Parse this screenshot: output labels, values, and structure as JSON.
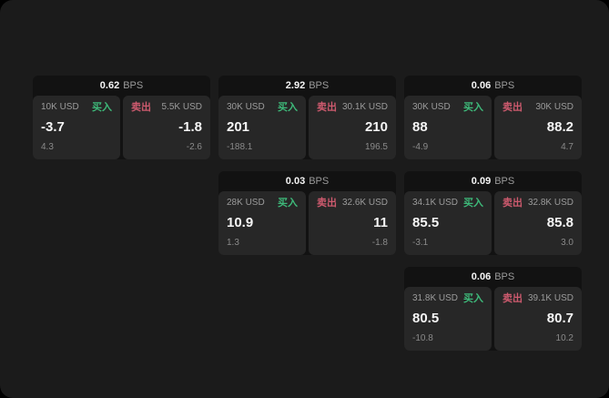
{
  "colors": {
    "surround": "#000000",
    "page_bg": "#1b1b1b",
    "card_bg": "#121212",
    "panel_bg": "#272727",
    "text_primary": "#f5f5f5",
    "text_secondary": "#9b9b9b",
    "text_muted": "#8a8a8a",
    "buy_green": "#3eba7a",
    "sell_red": "#cd5a6e"
  },
  "cards": [
    {
      "bps_value": "0.62",
      "bps_unit": "BPS",
      "buy": {
        "amount": "10K USD",
        "side_label": "买入",
        "value": "-3.7",
        "sub_value": "4.3"
      },
      "sell": {
        "side_label": "卖出",
        "amount": "5.5K USD",
        "value": "-1.8",
        "sub_value": "-2.6"
      }
    },
    {
      "bps_value": "2.92",
      "bps_unit": "BPS",
      "buy": {
        "amount": "30K USD",
        "side_label": "买入",
        "value": "201",
        "sub_value": "-188.1"
      },
      "sell": {
        "side_label": "卖出",
        "amount": "30.1K USD",
        "value": "210",
        "sub_value": "196.5"
      }
    },
    {
      "bps_value": "0.06",
      "bps_unit": "BPS",
      "buy": {
        "amount": "30K USD",
        "side_label": "买入",
        "value": "88",
        "sub_value": "-4.9"
      },
      "sell": {
        "side_label": "卖出",
        "amount": "30K USD",
        "value": "88.2",
        "sub_value": "4.7"
      }
    },
    {
      "bps_value": "0.03",
      "bps_unit": "BPS",
      "buy": {
        "amount": "28K USD",
        "side_label": "买入",
        "value": "10.9",
        "sub_value": "1.3"
      },
      "sell": {
        "side_label": "卖出",
        "amount": "32.6K USD",
        "value": "11",
        "sub_value": "-1.8"
      }
    },
    {
      "bps_value": "0.09",
      "bps_unit": "BPS",
      "buy": {
        "amount": "34.1K USD",
        "side_label": "买入",
        "value": "85.5",
        "sub_value": "-3.1"
      },
      "sell": {
        "side_label": "卖出",
        "amount": "32.8K USD",
        "value": "85.8",
        "sub_value": "3.0"
      }
    },
    {
      "bps_value": "0.06",
      "bps_unit": "BPS",
      "buy": {
        "amount": "31.8K USD",
        "side_label": "买入",
        "value": "80.5",
        "sub_value": "-10.8"
      },
      "sell": {
        "side_label": "卖出",
        "amount": "39.1K USD",
        "value": "80.7",
        "sub_value": "10.2"
      }
    }
  ]
}
